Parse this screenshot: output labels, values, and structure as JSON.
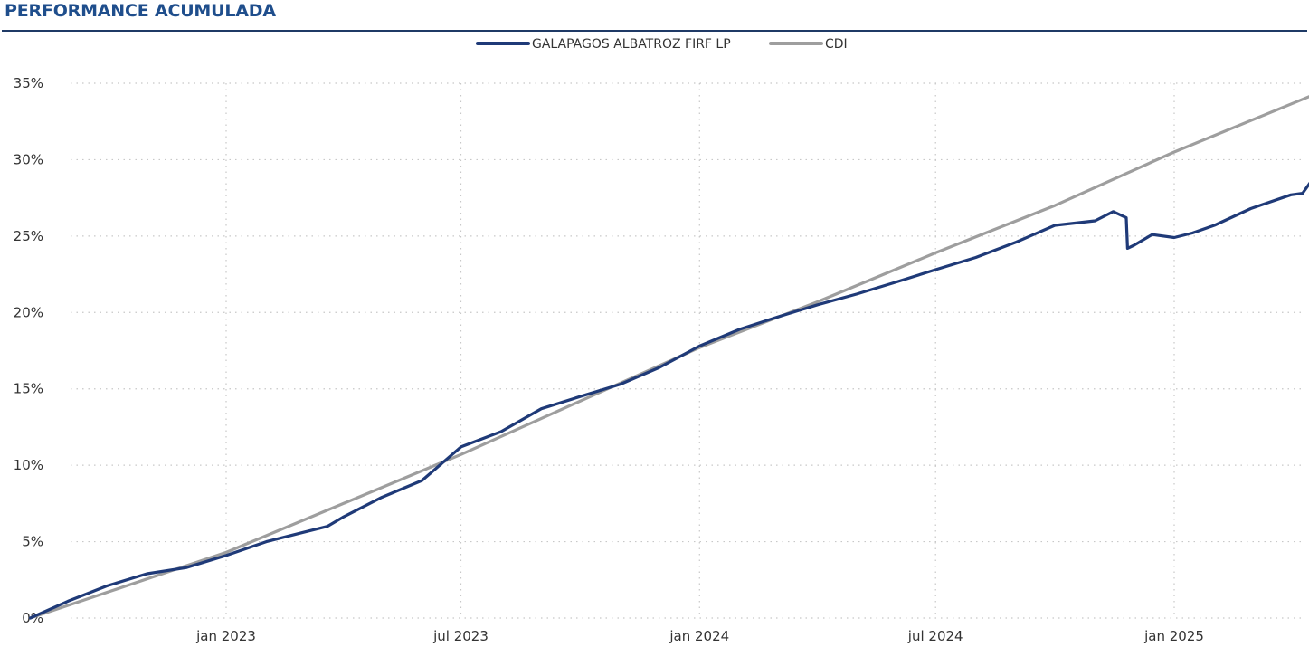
{
  "header": {
    "title": "PERFORMANCE ACUMULADA"
  },
  "colors": {
    "title": "#1f4e8c",
    "fund": "#1f3a78",
    "cdi": "#9e9e9e",
    "grid": "#c8c8c8"
  },
  "chart_data": {
    "type": "line",
    "title": "PERFORMANCE ACUMULADA",
    "xlabel": "",
    "ylabel": "",
    "x_range": [
      "2022-08-01",
      "2025-05-01"
    ],
    "ylim": [
      0,
      35
    ],
    "grid": true,
    "legend_position": "top-center",
    "y_ticks": [
      {
        "value": 0,
        "label": "0%"
      },
      {
        "value": 5,
        "label": "5%"
      },
      {
        "value": 10,
        "label": "10%"
      },
      {
        "value": 15,
        "label": "15%"
      },
      {
        "value": 20,
        "label": "20%"
      },
      {
        "value": 25,
        "label": "25%"
      },
      {
        "value": 30,
        "label": "30%"
      },
      {
        "value": 35,
        "label": "35%"
      }
    ],
    "x_ticks": [
      {
        "date": "2023-01-01",
        "label": "jan 2023"
      },
      {
        "date": "2023-07-01",
        "label": "jul 2023"
      },
      {
        "date": "2024-01-01",
        "label": "jan 2024"
      },
      {
        "date": "2024-07-01",
        "label": "jul 2024"
      },
      {
        "date": "2025-01-01",
        "label": "jan 2025"
      }
    ],
    "series": [
      {
        "name": "GALAPAGOS ALBATROZ FIRF LP",
        "color": "#1f3a78",
        "points": [
          [
            "2022-08-03",
            0.0
          ],
          [
            "2022-09-01",
            1.1
          ],
          [
            "2022-10-01",
            2.1
          ],
          [
            "2022-11-01",
            2.9
          ],
          [
            "2022-12-01",
            3.3
          ],
          [
            "2023-01-01",
            4.1
          ],
          [
            "2023-02-01",
            5.0
          ],
          [
            "2023-03-01",
            5.6
          ],
          [
            "2023-03-20",
            6.0
          ],
          [
            "2023-04-01",
            6.6
          ],
          [
            "2023-05-01",
            7.9
          ],
          [
            "2023-06-01",
            9.0
          ],
          [
            "2023-07-01",
            11.2
          ],
          [
            "2023-08-01",
            12.2
          ],
          [
            "2023-09-01",
            13.7
          ],
          [
            "2023-10-01",
            14.5
          ],
          [
            "2023-11-01",
            15.3
          ],
          [
            "2023-12-01",
            16.4
          ],
          [
            "2024-01-01",
            17.8
          ],
          [
            "2024-02-01",
            18.9
          ],
          [
            "2024-03-01",
            19.7
          ],
          [
            "2024-04-01",
            20.5
          ],
          [
            "2024-05-01",
            21.2
          ],
          [
            "2024-06-01",
            22.0
          ],
          [
            "2024-07-01",
            22.8
          ],
          [
            "2024-08-01",
            23.6
          ],
          [
            "2024-09-01",
            24.6
          ],
          [
            "2024-10-01",
            25.7
          ],
          [
            "2024-11-01",
            26.0
          ],
          [
            "2024-11-15",
            26.6
          ],
          [
            "2024-11-25",
            26.2
          ],
          [
            "2024-11-26",
            24.2
          ],
          [
            "2024-12-01",
            24.4
          ],
          [
            "2024-12-15",
            25.1
          ],
          [
            "2025-01-01",
            24.9
          ],
          [
            "2025-01-15",
            25.2
          ],
          [
            "2025-02-01",
            25.7
          ],
          [
            "2025-03-01",
            26.8
          ],
          [
            "2025-04-01",
            27.7
          ],
          [
            "2025-04-10",
            27.8
          ],
          [
            "2025-04-20",
            29.0
          ]
        ]
      },
      {
        "name": "CDI",
        "color": "#9e9e9e",
        "points": [
          [
            "2022-08-03",
            0.0
          ],
          [
            "2023-01-01",
            4.3
          ],
          [
            "2023-07-01",
            10.7
          ],
          [
            "2024-01-01",
            17.7
          ],
          [
            "2024-04-01",
            20.7
          ],
          [
            "2024-07-01",
            23.9
          ],
          [
            "2024-10-01",
            27.0
          ],
          [
            "2025-01-01",
            30.5
          ],
          [
            "2025-04-20",
            34.3
          ]
        ]
      }
    ]
  }
}
